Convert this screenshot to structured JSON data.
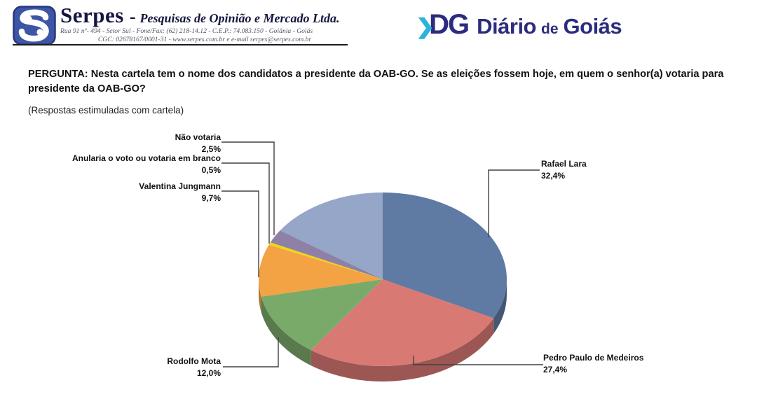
{
  "header": {
    "serpes": {
      "name": "Serpes",
      "dash": "-",
      "tagline": "Pesquisas de Opinião e Mercado Ltda.",
      "address_line1": "Rua 91 nº- 494 - Setor Sul - Fone/Fax: (62) 218-14.12 - C.E.P.: 74.083.150 - Goiânia - Goiás",
      "address_line2": "CGC: 02678167/0001-31 - www.serpes.com.br e e-mail serpes@serpes.com.br"
    },
    "dg": {
      "chevron": "❯",
      "monogram": "DG",
      "title_part1": "Diário",
      "title_part2": "de",
      "title_part3": "Goiás",
      "navy": "#2b2c7f",
      "cyan": "#2bb3dc"
    }
  },
  "question": {
    "text": "PERGUNTA: Nesta cartela tem o nome dos candidatos a presidente da OAB-GO. Se as eleições fossem hoje, em quem o senhor(a) votaria para presidente da OAB-GO?",
    "note": "(Respostas estimuladas com cartela)"
  },
  "chart_data": {
    "type": "pie",
    "style": "3d",
    "start_angle": "top",
    "direction": "clockwise",
    "unit": "%",
    "slices": [
      {
        "id": "rafael-lara",
        "label": "Rafael Lara",
        "value": 32.4,
        "value_label": "32,4%",
        "color": "#5f7aa3",
        "label_visible": true
      },
      {
        "id": "pedro-paulo",
        "label": "Pedro Paulo de Medeiros",
        "value": 27.4,
        "value_label": "27,4%",
        "color": "#d97974",
        "label_visible": true
      },
      {
        "id": "rodolfo-mota",
        "label": "Rodolfo Mota",
        "value": 12.0,
        "value_label": "12,0%",
        "color": "#7aaa69",
        "label_visible": true
      },
      {
        "id": "valentina-jungmann",
        "label": "Valentina Jungmann",
        "value": 9.7,
        "value_label": "9,7%",
        "color": "#f3a244",
        "label_visible": true
      },
      {
        "id": "anularia-branco",
        "label": "Anularia o voto ou votaria em branco",
        "value": 0.5,
        "value_label": "0,5%",
        "color": "#f0d515",
        "label_visible": true
      },
      {
        "id": "nao-votaria",
        "label": "Não votaria",
        "value": 2.5,
        "value_label": "2,5%",
        "color": "#8e81a5",
        "label_visible": true
      },
      {
        "id": "sem-rotulo",
        "label": "",
        "value": 15.5,
        "value_label": "",
        "color": "#95a6c9",
        "label_visible": false
      }
    ]
  }
}
